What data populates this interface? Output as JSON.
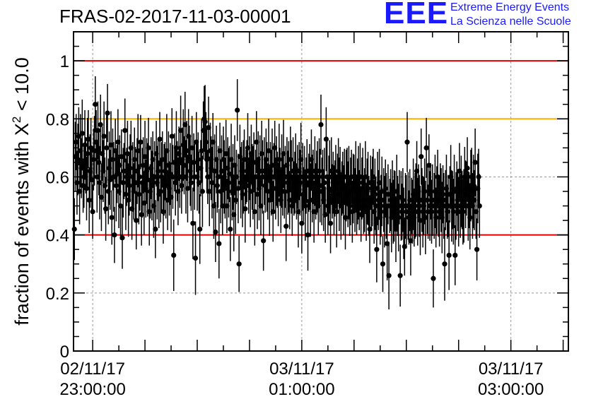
{
  "header": {
    "title": "FRAS-02-2017-11-03-00001",
    "logo_mark": "EEE",
    "logo_line1": "Extreme Energy Events",
    "logo_line2": "La Scienza nelle Scuole"
  },
  "chart_data": {
    "type": "scatter",
    "title": "FRAS-02-2017-11-03-00001",
    "xlabel": "",
    "ylabel": "fraction of events with χ² < 10.0",
    "ylabel_parts": {
      "prefix": "fraction of events with",
      "chi": "X",
      "sup": "2",
      "suffix": "< 10.0"
    },
    "xlim": [
      "2017-11-02 22:49:00",
      "2017-11-03 03:33:00"
    ],
    "ylim": [
      0,
      1.1
    ],
    "y_ticks": [
      {
        "value": 0,
        "label": "0"
      },
      {
        "value": 0.2,
        "label": "0.2"
      },
      {
        "value": 0.4,
        "label": "0.4"
      },
      {
        "value": 0.6,
        "label": "0.6"
      },
      {
        "value": 0.8,
        "label": "0.8"
      },
      {
        "value": 1.0,
        "label": "1"
      }
    ],
    "x_ticks": [
      {
        "value": "2017-11-02 23:00:00",
        "date": "02/11/17",
        "time": "23:00:00"
      },
      {
        "value": "2017-11-03 01:00:00",
        "date": "03/11/17",
        "time": "01:00:00"
      },
      {
        "value": "2017-11-03 03:00:00",
        "date": "03/11/17",
        "time": "03:00:00"
      }
    ],
    "grid": true,
    "reference_lines": [
      {
        "y": 1.0,
        "color": "#e00000"
      },
      {
        "y": 0.8,
        "color": "#ffb000"
      },
      {
        "y": 0.4,
        "color": "#e00000"
      }
    ],
    "colors": {
      "points": "#000000",
      "grid": "#999999",
      "axis": "#000000"
    },
    "error_bar_typical": 0.11,
    "series": [
      {
        "name": "",
        "note": "Approximately 560 points; values sampled every ~30 s, mean ~0.58, spread 0.3–0.85, each with vertical error bar ≈ ±0.11",
        "x_start": "2017-11-02 22:49:00",
        "x_step_seconds": 30,
        "y": [
          0.61,
          0.42,
          0.67,
          0.72,
          0.58,
          0.66,
          0.74,
          0.55,
          0.69,
          0.63,
          0.75,
          0.57,
          0.6,
          0.71,
          0.64,
          0.56,
          0.68,
          0.73,
          0.52,
          0.62,
          0.7,
          0.59,
          0.48,
          0.66,
          0.69,
          0.85,
          0.72,
          0.6,
          0.76,
          0.65,
          0.58,
          0.78,
          0.53,
          0.68,
          0.62,
          0.74,
          0.57,
          0.49,
          0.7,
          0.82,
          0.55,
          0.63,
          0.59,
          0.71,
          0.46,
          0.66,
          0.6,
          0.4,
          0.69,
          0.57,
          0.61,
          0.72,
          0.55,
          0.64,
          0.5,
          0.67,
          0.39,
          0.58,
          0.62,
          0.76,
          0.54,
          0.6,
          0.68,
          0.52,
          0.57,
          0.63,
          0.7,
          0.49,
          0.6,
          0.55,
          0.66,
          0.58,
          0.45,
          0.62,
          0.69,
          0.54,
          0.6,
          0.72,
          0.47,
          0.58,
          0.64,
          0.51,
          0.67,
          0.56,
          0.62,
          0.59,
          0.7,
          0.48,
          0.55,
          0.63,
          0.57,
          0.66,
          0.5,
          0.6,
          0.42,
          0.68,
          0.58,
          0.62,
          0.54,
          0.73,
          0.55,
          0.6,
          0.66,
          0.48,
          0.59,
          0.62,
          0.57,
          0.69,
          0.52,
          0.64,
          0.56,
          0.61,
          0.53,
          0.74,
          0.6,
          0.33,
          0.65,
          0.58,
          0.7,
          0.62,
          0.55,
          0.68,
          0.6,
          0.76,
          0.57,
          0.66,
          0.71,
          0.64,
          0.78,
          0.6,
          0.69,
          0.56,
          0.74,
          0.67,
          0.62,
          0.58,
          0.7,
          0.44,
          0.65,
          0.6,
          0.32,
          0.72,
          0.6,
          0.66,
          0.58,
          0.42,
          0.63,
          0.69,
          0.55,
          0.76,
          0.8,
          0.79,
          0.72,
          0.66,
          0.6,
          0.77,
          0.55,
          0.69,
          0.63,
          0.58,
          0.72,
          0.5,
          0.62,
          0.41,
          0.66,
          0.57,
          0.6,
          0.37,
          0.69,
          0.55,
          0.62,
          0.5,
          0.66,
          0.6,
          0.56,
          0.68,
          0.5,
          0.63,
          0.58,
          0.61,
          0.42,
          0.66,
          0.55,
          0.6,
          0.47,
          0.64,
          0.52,
          0.6,
          0.83,
          0.56,
          0.3,
          0.67,
          0.58,
          0.62,
          0.54,
          0.6,
          0.66,
          0.49,
          0.6,
          0.62,
          0.7,
          0.57,
          0.63,
          0.55,
          0.68,
          0.6,
          0.58,
          0.65,
          0.48,
          0.6,
          0.72,
          0.54,
          0.66,
          0.56,
          0.62,
          0.5,
          0.68,
          0.6,
          0.38,
          0.62,
          0.57,
          0.66,
          0.6,
          0.55,
          0.69,
          0.52,
          0.62,
          0.58,
          0.64,
          0.48,
          0.6,
          0.7,
          0.56,
          0.62,
          0.59,
          0.54,
          0.66,
          0.6,
          0.52,
          0.62,
          0.57,
          0.68,
          0.55,
          0.6,
          0.43,
          0.64,
          0.58,
          0.6,
          0.52,
          0.66,
          0.6,
          0.5,
          0.62,
          0.56,
          0.58,
          0.63,
          0.55,
          0.6,
          0.48,
          0.62,
          0.58,
          0.66,
          0.44,
          0.6,
          0.54,
          0.6,
          0.5,
          0.57,
          0.62,
          0.4,
          0.58,
          0.6,
          0.52,
          0.66,
          0.56,
          0.6,
          0.48,
          0.62,
          0.55,
          0.58,
          0.6,
          0.5,
          0.62,
          0.57,
          0.78,
          0.55,
          0.6,
          0.52,
          0.58,
          0.47,
          0.73,
          0.6,
          0.5,
          0.56,
          0.6,
          0.44,
          0.62,
          0.55,
          0.58,
          0.52,
          0.56,
          0.6,
          0.48,
          0.58,
          0.62,
          0.54,
          0.6,
          0.5,
          0.56,
          0.58,
          0.52,
          0.6,
          0.46,
          0.57,
          0.6,
          0.54,
          0.58,
          0.5,
          0.55,
          0.6,
          0.48,
          0.56,
          0.58,
          0.52,
          0.6,
          0.5,
          0.55,
          0.58,
          0.52,
          0.6,
          0.47,
          0.56,
          0.58,
          0.5,
          0.52,
          0.6,
          0.48,
          0.55,
          0.56,
          0.5,
          0.42,
          0.58,
          0.52,
          0.55,
          0.6,
          0.48,
          0.54,
          0.5,
          0.35,
          0.56,
          0.52,
          0.58,
          0.46,
          0.5,
          0.55,
          0.3,
          0.52,
          0.48,
          0.56,
          0.5,
          0.37,
          0.54,
          0.26,
          0.5,
          0.52,
          0.46,
          0.56,
          0.48,
          0.5,
          0.52,
          0.42,
          0.55,
          0.5,
          0.46,
          0.53,
          0.26,
          0.5,
          0.48,
          0.52,
          0.44,
          0.36,
          0.5,
          0.48,
          0.72,
          0.5,
          0.46,
          0.52,
          0.38,
          0.5,
          0.48,
          0.54,
          0.46,
          0.5,
          0.52,
          0.62,
          0.48,
          0.55,
          0.5,
          0.45,
          0.67,
          0.52,
          0.48,
          0.5,
          0.55,
          0.46,
          0.7,
          0.52,
          0.48,
          0.64,
          0.5,
          0.55,
          0.48,
          0.52,
          0.25,
          0.5,
          0.55,
          0.46,
          0.52,
          0.6,
          0.5,
          0.48,
          0.55,
          0.52,
          0.46,
          0.54,
          0.5,
          0.3,
          0.52,
          0.56,
          0.48,
          0.5,
          0.33,
          0.54,
          0.6,
          0.5,
          0.52,
          0.48,
          0.55,
          0.33,
          0.5,
          0.56,
          0.52,
          0.48,
          0.62,
          0.5,
          0.55,
          0.52,
          0.48,
          0.5,
          0.6,
          0.54,
          0.56,
          0.63,
          0.5,
          0.52,
          0.46,
          0.57,
          0.6,
          0.5,
          0.55,
          0.52,
          0.65,
          0.48,
          0.35,
          0.56,
          0.6,
          0.5
        ]
      }
    ]
  }
}
